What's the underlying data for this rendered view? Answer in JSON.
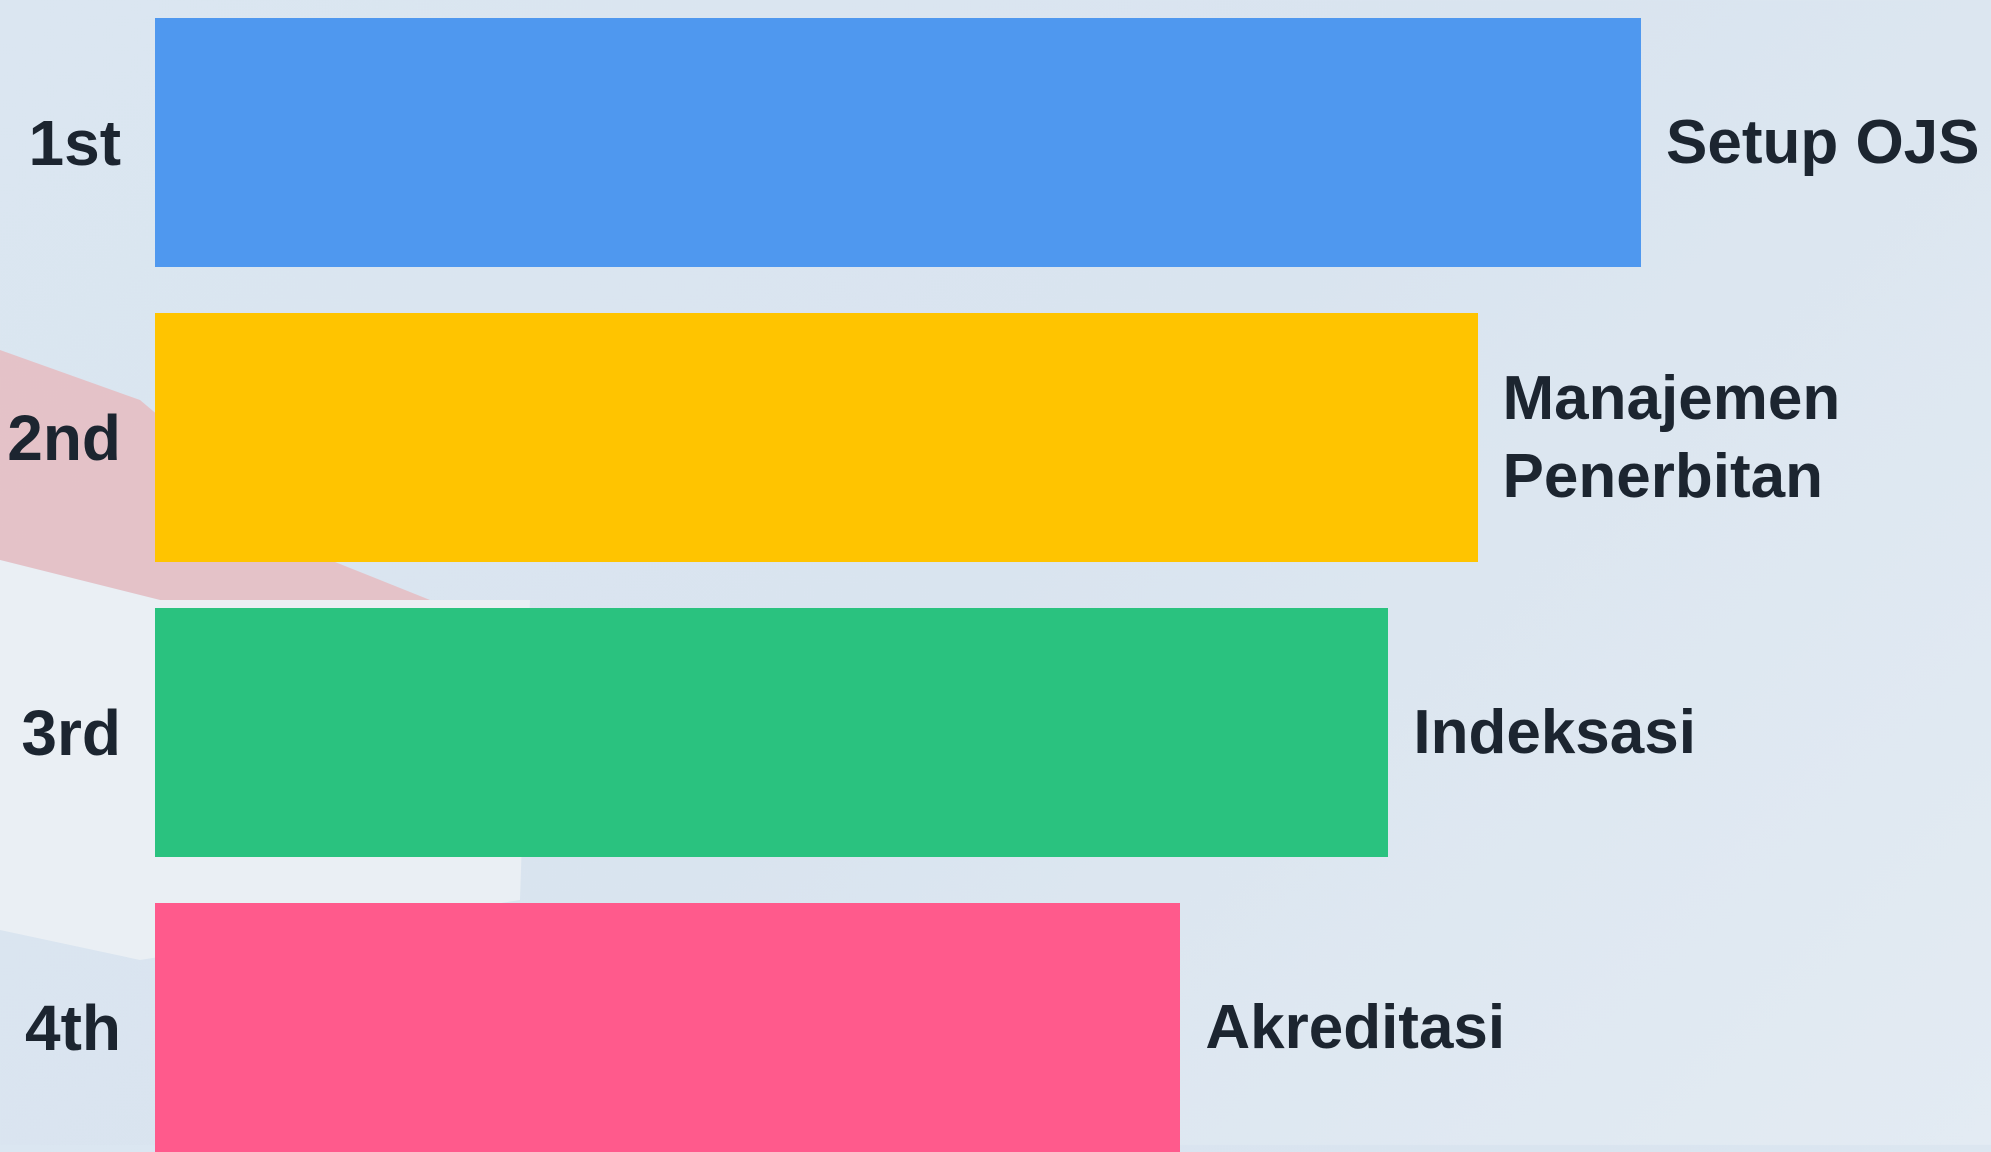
{
  "chart_data": {
    "type": "bar",
    "orientation": "horizontal",
    "ranks": [
      "1st",
      "2nd",
      "3rd",
      "4th"
    ],
    "categories": [
      "Setup OJS",
      "Manajemen Penerbitan",
      "Indeksasi",
      "Akreditasi"
    ],
    "values": [
      100,
      89,
      83,
      69
    ],
    "colors": [
      "#4f98ef",
      "#ffc400",
      "#2ac27f",
      "#ff5a8c"
    ],
    "xlim": [
      0,
      100
    ]
  }
}
